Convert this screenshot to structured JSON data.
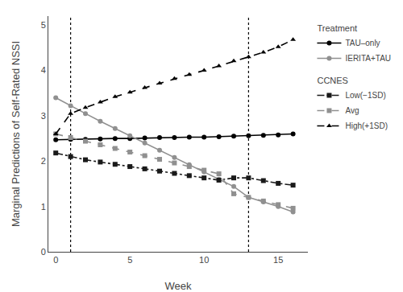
{
  "chart_data": {
    "type": "line",
    "xlabel": "Week",
    "ylabel": "Marginal Predictions of Self-Rated NSSI",
    "x": [
      0,
      1,
      2,
      3,
      4,
      5,
      6,
      7,
      8,
      9,
      10,
      11,
      12,
      13,
      14,
      15,
      16
    ],
    "series": [
      {
        "name": "TAU–only",
        "group": "Treatment",
        "color": "#000000",
        "marker": "circle",
        "line_style": "solid",
        "values": [
          2.47,
          2.48,
          2.48,
          2.49,
          2.5,
          2.5,
          2.51,
          2.52,
          2.52,
          2.53,
          2.53,
          2.54,
          2.55,
          2.56,
          2.57,
          2.58,
          2.6
        ]
      },
      {
        "name": "IERITA+TAU",
        "group": "Treatment",
        "color": "#909090",
        "marker": "circle",
        "line_style": "solid",
        "values": [
          3.4,
          3.22,
          3.05,
          2.88,
          2.72,
          2.56,
          2.4,
          2.24,
          2.08,
          1.92,
          1.76,
          1.6,
          1.44,
          1.2,
          1.1,
          1.0,
          0.88
        ]
      },
      {
        "name": "Low(−1SD)",
        "group": "CCNES",
        "color": "#1a1a1a",
        "marker": "square",
        "line_style": "dashdot",
        "values": [
          2.18,
          2.1,
          2.03,
          1.98,
          1.93,
          1.88,
          1.83,
          1.78,
          1.73,
          1.68,
          1.63,
          1.58,
          1.63,
          1.63,
          1.57,
          1.51,
          1.47
        ]
      },
      {
        "name": "Avg",
        "group": "CCNES",
        "color": "#909090",
        "marker": "square",
        "line_style": "dash",
        "values": [
          2.6,
          2.52,
          2.44,
          2.36,
          2.28,
          2.2,
          2.12,
          2.04,
          1.96,
          1.88,
          1.8,
          1.72,
          1.28,
          1.2,
          1.12,
          1.04,
          0.96
        ]
      },
      {
        "name": "High(+1SD)",
        "group": "CCNES",
        "color": "#000000",
        "marker": "triangle-up",
        "line_style": "dash",
        "values": [
          2.6,
          3.05,
          3.18,
          3.3,
          3.42,
          3.52,
          3.62,
          3.72,
          3.82,
          3.91,
          4.0,
          4.1,
          4.21,
          4.3,
          4.4,
          4.52,
          4.68
        ]
      }
    ],
    "xlim": [
      -0.5,
      17.0
    ],
    "ylim": [
      0,
      5.2
    ],
    "xticks": [
      0,
      5,
      10,
      15
    ],
    "yticks": [
      0,
      1,
      2,
      3,
      4,
      5
    ],
    "vlines": [
      1,
      13
    ],
    "grid": false
  }
}
